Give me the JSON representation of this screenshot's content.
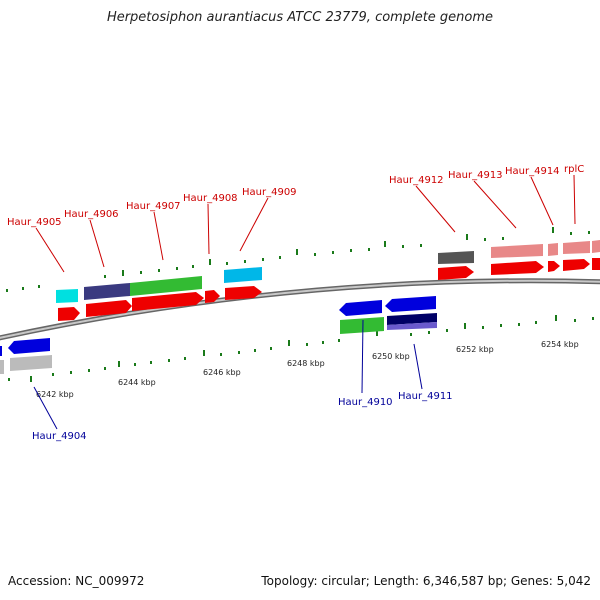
{
  "title": "Herpetosiphon aurantiacus ATCC 23779, complete genome",
  "footer": {
    "accession": "Accession: NC_009972",
    "summary": "Topology: circular; Length: 6,346,587 bp; Genes: 5,042"
  },
  "colors": {
    "forward_label": "#cc0000",
    "reverse_label": "#000099",
    "backbone": "#888888",
    "tick": "#1a7a1a"
  },
  "ticks": [
    {
      "label": "6242 kbp"
    },
    {
      "label": "6244 kbp"
    },
    {
      "label": "6246 kbp"
    },
    {
      "label": "6248 kbp"
    },
    {
      "label": "6250 kbp"
    },
    {
      "label": "6252 kbp"
    },
    {
      "label": "6254 kbp"
    }
  ],
  "forward_labels": [
    {
      "text": "Haur_4905"
    },
    {
      "text": "Haur_4906"
    },
    {
      "text": "Haur_4907"
    },
    {
      "text": "Haur_4908"
    },
    {
      "text": "Haur_4909"
    },
    {
      "text": "Haur_4912"
    },
    {
      "text": "Haur_4913"
    },
    {
      "text": "Haur_4914"
    },
    {
      "text": "rplC"
    }
  ],
  "reverse_labels": [
    {
      "text": "Haur_4904"
    },
    {
      "text": "Haur_4910"
    },
    {
      "text": "Haur_4911"
    }
  ]
}
